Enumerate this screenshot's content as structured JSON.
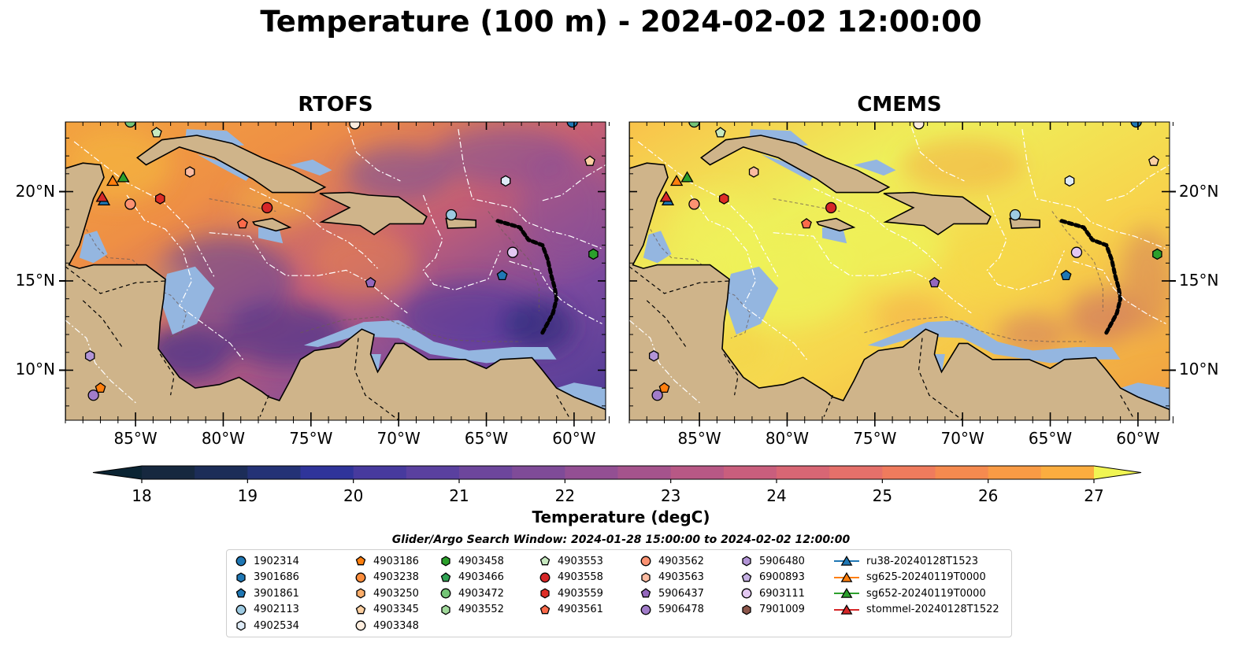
{
  "title": "Temperature (100 m) - 2024-02-02 12:00:00",
  "panels": [
    {
      "name": "RTOFS",
      "style": "rtofs"
    },
    {
      "name": "CMEMS",
      "style": "cmems"
    }
  ],
  "lon_ticks": [
    "85°W",
    "80°W",
    "75°W",
    "70°W",
    "65°W",
    "60°W"
  ],
  "lat_ticks": [
    "20°N",
    "15°N",
    "10°N"
  ],
  "colorbar": {
    "label": "Temperature (degC)",
    "ticks": [
      "18",
      "19",
      "20",
      "21",
      "22",
      "23",
      "24",
      "25",
      "26",
      "27"
    ],
    "min": 18,
    "max": 27,
    "extend": "both"
  },
  "search_window": "Glider/Argo Search Window: 2024-01-28 15:00:00 to 2024-02-02 12:00:00",
  "legend": {
    "columns": [
      [
        {
          "label": "1902314",
          "shape": "circle",
          "color": "#1f77b4"
        },
        {
          "label": "3901686",
          "shape": "hexagon",
          "color": "#1f77b4"
        },
        {
          "label": "3901861",
          "shape": "pentagon",
          "color": "#1f77b4"
        },
        {
          "label": "4902113",
          "shape": "circle",
          "color": "#9ecae1"
        },
        {
          "label": "4902534",
          "shape": "hexagon",
          "color": "#deebf7"
        }
      ],
      [
        {
          "label": "4903186",
          "shape": "pentagon",
          "color": "#ff7f0e"
        },
        {
          "label": "4903238",
          "shape": "circle",
          "color": "#fd8d3c"
        },
        {
          "label": "4903250",
          "shape": "hexagon",
          "color": "#fdae6b"
        },
        {
          "label": "4903345",
          "shape": "pentagon",
          "color": "#fdd0a2"
        },
        {
          "label": "4903348",
          "shape": "circle",
          "color": "#feedde"
        }
      ],
      [
        {
          "label": "4903458",
          "shape": "hexagon",
          "color": "#2ca02c"
        },
        {
          "label": "4903466",
          "shape": "pentagon",
          "color": "#31a354"
        },
        {
          "label": "4903472",
          "shape": "circle",
          "color": "#74c476"
        },
        {
          "label": "4903552",
          "shape": "hexagon",
          "color": "#a1d99b"
        }
      ],
      [
        {
          "label": "4903553",
          "shape": "pentagon",
          "color": "#c7e9c0"
        },
        {
          "label": "4903558",
          "shape": "circle",
          "color": "#d62728"
        },
        {
          "label": "4903559",
          "shape": "hexagon",
          "color": "#de2d26"
        },
        {
          "label": "4903561",
          "shape": "pentagon",
          "color": "#fb6a4a"
        }
      ],
      [
        {
          "label": "4903562",
          "shape": "circle",
          "color": "#fc9272"
        },
        {
          "label": "4903563",
          "shape": "hexagon",
          "color": "#fcbba1"
        },
        {
          "label": "5906437",
          "shape": "pentagon",
          "color": "#9467bd"
        },
        {
          "label": "5906478",
          "shape": "circle",
          "color": "#a17cc9"
        }
      ],
      [
        {
          "label": "5906480",
          "shape": "hexagon",
          "color": "#b294d6"
        },
        {
          "label": "6900893",
          "shape": "pentagon",
          "color": "#c5b0e3"
        },
        {
          "label": "6903111",
          "shape": "circle",
          "color": "#e3c8f2"
        },
        {
          "label": "7901009",
          "shape": "hexagon",
          "color": "#8c564b"
        }
      ],
      [
        {
          "label": "ru38-20240128T1523",
          "shape": "triangle",
          "color": "#1f77b4"
        },
        {
          "label": "sg625-20240119T0000",
          "shape": "triangle",
          "color": "#ff7f0e"
        },
        {
          "label": "sg652-20240119T0000",
          "shape": "triangle",
          "color": "#2ca02c"
        },
        {
          "label": "stommel-20240128T1522",
          "shape": "triangle",
          "color": "#d62728"
        }
      ]
    ]
  },
  "markers": [
    {
      "id": "1902314",
      "lon": -60.1,
      "lat": 23.9,
      "shape": "circle",
      "color": "#1f77b4"
    },
    {
      "id": "4902113",
      "lon": -67.0,
      "lat": 18.7,
      "shape": "circle",
      "color": "#9ecae1"
    },
    {
      "id": "4902534",
      "lon": -63.9,
      "lat": 20.6,
      "shape": "hexagon",
      "color": "#deebf7"
    },
    {
      "id": "3901861",
      "lon": -64.1,
      "lat": 15.3,
      "shape": "pentagon",
      "color": "#1f77b4"
    },
    {
      "id": "4903186",
      "lon": -87.0,
      "lat": 9.0,
      "shape": "pentagon",
      "color": "#ff7f0e"
    },
    {
      "id": "4903345",
      "lon": -59.1,
      "lat": 21.7,
      "shape": "pentagon",
      "color": "#fdd0a2"
    },
    {
      "id": "4903348",
      "lon": -72.5,
      "lat": 23.8,
      "shape": "circle",
      "color": "#feedde"
    },
    {
      "id": "4903458",
      "lon": -58.9,
      "lat": 16.5,
      "shape": "hexagon",
      "color": "#2ca02c"
    },
    {
      "id": "4903472",
      "lon": -85.3,
      "lat": 23.9,
      "shape": "circle",
      "color": "#74c476"
    },
    {
      "id": "4903553",
      "lon": -83.8,
      "lat": 23.3,
      "shape": "pentagon",
      "color": "#c7e9c0"
    },
    {
      "id": "4903558",
      "lon": -77.5,
      "lat": 19.1,
      "shape": "circle",
      "color": "#d62728"
    },
    {
      "id": "4903559",
      "lon": -83.6,
      "lat": 19.6,
      "shape": "hexagon",
      "color": "#de2d26"
    },
    {
      "id": "4903561",
      "lon": -78.9,
      "lat": 18.2,
      "shape": "pentagon",
      "color": "#fb6a4a"
    },
    {
      "id": "4903562",
      "lon": -85.3,
      "lat": 19.3,
      "shape": "circle",
      "color": "#fc9272"
    },
    {
      "id": "4903563",
      "lon": -81.9,
      "lat": 21.1,
      "shape": "hexagon",
      "color": "#fcbba1"
    },
    {
      "id": "5906437",
      "lon": -71.6,
      "lat": 14.9,
      "shape": "pentagon",
      "color": "#9467bd"
    },
    {
      "id": "5906478",
      "lon": -87.4,
      "lat": 8.6,
      "shape": "circle",
      "color": "#a17cc9"
    },
    {
      "id": "5906480",
      "lon": -87.6,
      "lat": 10.8,
      "shape": "hexagon",
      "color": "#b294d6"
    },
    {
      "id": "6903111",
      "lon": -63.5,
      "lat": 16.6,
      "shape": "circle",
      "color": "#e3c8f2"
    },
    {
      "id": "ru38-20240128T1523",
      "lon": -86.8,
      "lat": 19.5,
      "shape": "triangle",
      "color": "#1f77b4"
    },
    {
      "id": "sg625-20240119T0000",
      "lon": -86.3,
      "lat": 20.6,
      "shape": "triangle",
      "color": "#ff7f0e"
    },
    {
      "id": "sg652-20240119T0000",
      "lon": -85.7,
      "lat": 20.8,
      "shape": "triangle",
      "color": "#2ca02c"
    },
    {
      "id": "stommel-20240128T1522",
      "lon": -86.9,
      "lat": 19.7,
      "shape": "triangle",
      "color": "#d62728"
    }
  ],
  "colors": {
    "land": "#cfb48a",
    "shallow": "#94b6e0",
    "ocean_cold": "#0e2a3e"
  }
}
